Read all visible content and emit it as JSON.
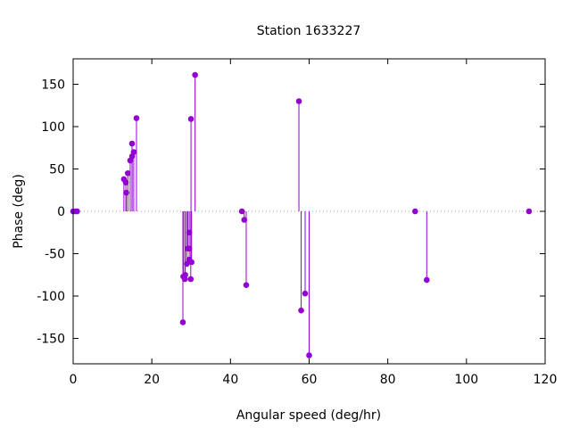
{
  "chart_data": {
    "type": "scatter",
    "title": "Station 1633227",
    "xlabel": "Angular speed (deg/hr)",
    "ylabel": "Phase (deg)",
    "xlim": [
      0,
      120
    ],
    "ylim": [
      -180,
      180
    ],
    "xticks": [
      0,
      20,
      40,
      60,
      80,
      100,
      120
    ],
    "yticks": [
      -150,
      -100,
      -50,
      0,
      50,
      100,
      150
    ],
    "grid": false,
    "legend": "none",
    "style": "impulses with points",
    "baseline": "dotted line at y = 0",
    "color": "#9400d3",
    "points": [
      {
        "x": 0.0,
        "y": 0
      },
      {
        "x": 0.5,
        "y": 0
      },
      {
        "x": 1.0,
        "y": 0
      },
      {
        "x": 12.9,
        "y": 38
      },
      {
        "x": 13.4,
        "y": 34
      },
      {
        "x": 13.5,
        "y": 22
      },
      {
        "x": 13.9,
        "y": 45
      },
      {
        "x": 14.5,
        "y": 60
      },
      {
        "x": 14.96,
        "y": 80
      },
      {
        "x": 15.0,
        "y": 65
      },
      {
        "x": 15.4,
        "y": 70
      },
      {
        "x": 16.1,
        "y": 110
      },
      {
        "x": 27.9,
        "y": -131
      },
      {
        "x": 28.0,
        "y": -77
      },
      {
        "x": 28.4,
        "y": -80
      },
      {
        "x": 28.5,
        "y": -75
      },
      {
        "x": 28.9,
        "y": -62
      },
      {
        "x": 29.1,
        "y": -44
      },
      {
        "x": 29.5,
        "y": -25
      },
      {
        "x": 29.5,
        "y": -44
      },
      {
        "x": 29.5,
        "y": -57
      },
      {
        "x": 29.9,
        "y": -80
      },
      {
        "x": 29.96,
        "y": 109
      },
      {
        "x": 30.1,
        "y": -60
      },
      {
        "x": 31.0,
        "y": 161
      },
      {
        "x": 42.9,
        "y": 0
      },
      {
        "x": 43.5,
        "y": -10
      },
      {
        "x": 44.0,
        "y": -87
      },
      {
        "x": 57.4,
        "y": 130
      },
      {
        "x": 57.97,
        "y": -117
      },
      {
        "x": 58.98,
        "y": -97
      },
      {
        "x": 60.0,
        "y": -170
      },
      {
        "x": 86.95,
        "y": 0
      },
      {
        "x": 89.9,
        "y": -81
      },
      {
        "x": 115.9,
        "y": 0
      }
    ]
  }
}
